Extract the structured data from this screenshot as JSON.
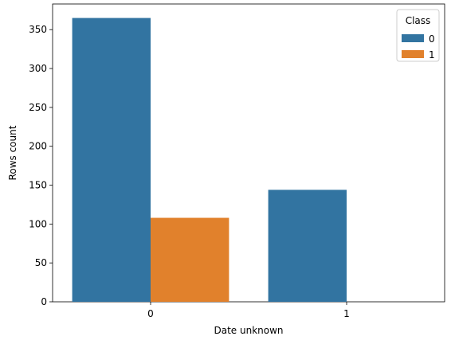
{
  "chart_data": {
    "type": "bar",
    "categories": [
      "0",
      "1"
    ],
    "series": [
      {
        "name": "0",
        "values": [
          365,
          144
        ],
        "color": "#3274a1"
      },
      {
        "name": "1",
        "values": [
          108,
          0
        ],
        "color": "#e1812c"
      }
    ],
    "xlabel": "Date unknown",
    "ylabel": "Rows count",
    "ylim": [
      0,
      383
    ],
    "yticks": [
      0,
      50,
      100,
      150,
      200,
      250,
      300,
      350
    ],
    "grid": false,
    "legend": {
      "title": "Class",
      "placement": "top-right"
    }
  }
}
